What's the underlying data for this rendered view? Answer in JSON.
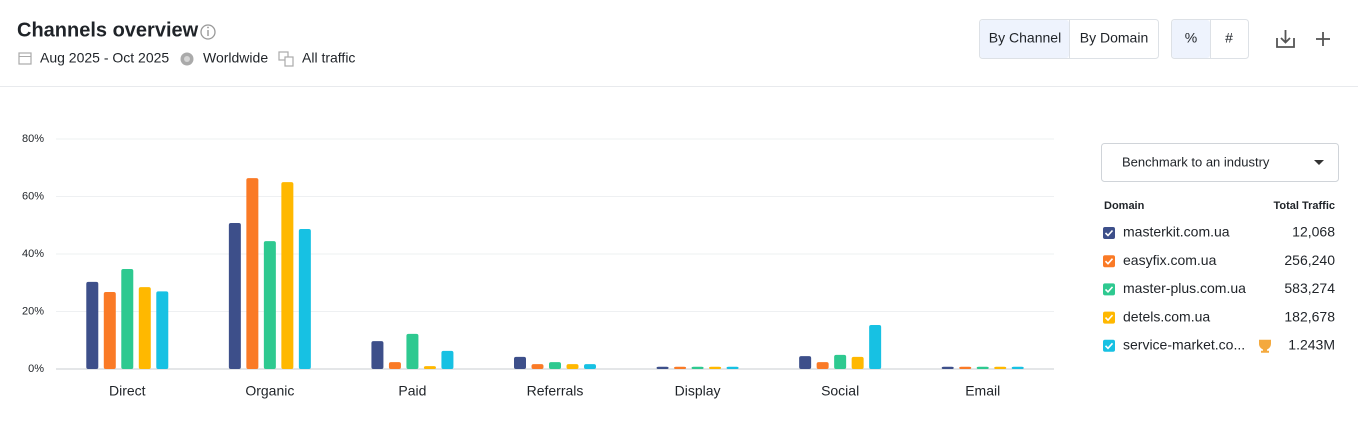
{
  "header": {
    "title": "Channels overview",
    "period": "Aug 2025 - Oct 2025",
    "region": "Worldwide",
    "traffic": "All traffic"
  },
  "controls": {
    "view_buttons": [
      "By Channel",
      "By Domain"
    ],
    "unit_buttons": [
      "%",
      "#"
    ],
    "benchmark": "Benchmark to an industry"
  },
  "legend_table": {
    "columns": [
      "Domain",
      "Total Traffic"
    ],
    "totals": [
      "12,068",
      "256,240",
      "583,274",
      "182,678",
      "1.243M"
    ]
  },
  "chart_data": {
    "type": "bar",
    "categories": [
      "Direct",
      "Organic",
      "Paid",
      "Referrals",
      "Display",
      "Social",
      "Email"
    ],
    "category_label_colors": [
      "#1f2328",
      "#3d6fd7",
      "#3d6fd7",
      "#3d6fd7",
      "#3d6fd7",
      "#3d6fd7",
      "#1f2328"
    ],
    "series": [
      {
        "name": "masterkit.com.ua",
        "color": "#3d4f8a",
        "values": [
          30.3,
          50.8,
          9.7,
          4.2,
          0.8,
          4.5,
          0.8
        ]
      },
      {
        "name": "easyfix.com.ua",
        "color": "#fa7a26",
        "values": [
          26.8,
          66.4,
          2.4,
          1.7,
          0.8,
          2.4,
          0.8
        ]
      },
      {
        "name": "master-plus.com.ua",
        "color": "#2ec990",
        "values": [
          34.8,
          44.5,
          12.2,
          2.4,
          0.8,
          4.9,
          0.8
        ]
      },
      {
        "name": "detels.com.ua",
        "color": "#ffb800",
        "values": [
          28.5,
          65,
          1,
          1.7,
          0.8,
          4.2,
          0.8
        ]
      },
      {
        "name": "service-market.co...",
        "color": "#17c1e3",
        "values": [
          27,
          48.7,
          6.3,
          1.7,
          0.8,
          15.3,
          0.8
        ]
      }
    ],
    "ylim": [
      0,
      80
    ],
    "yticks": [
      {
        "value": 0,
        "label": "0%"
      },
      {
        "value": 20,
        "label": "20%"
      },
      {
        "value": 40,
        "label": "40%"
      },
      {
        "value": 60,
        "label": "60%"
      },
      {
        "value": 80,
        "label": "80%"
      }
    ],
    "grid": true
  }
}
